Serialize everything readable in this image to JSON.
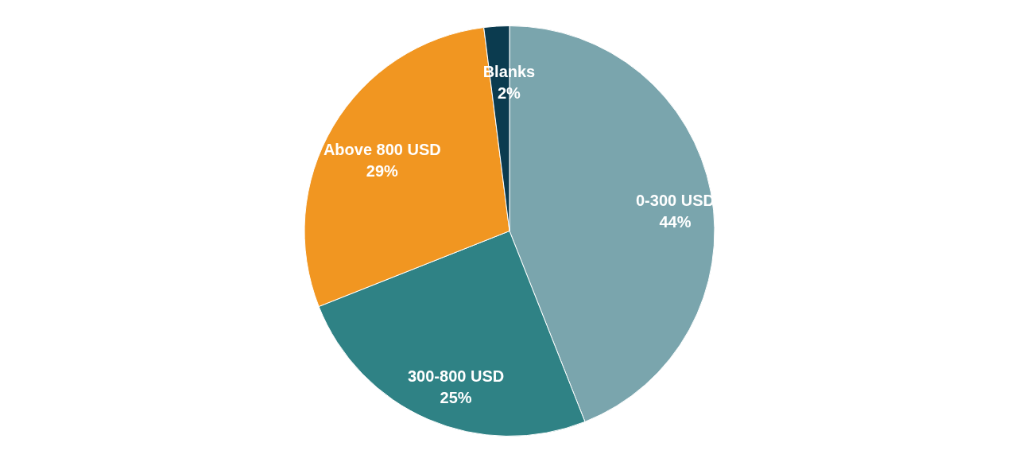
{
  "chart_data": {
    "type": "pie",
    "categories": [
      "0-300 USD",
      "300-800 USD",
      "Above 800 USD",
      "Blanks"
    ],
    "values": [
      44,
      25,
      29,
      2
    ],
    "value_labels": [
      "44%",
      "25%",
      "29%",
      "2%"
    ],
    "colors": [
      "#7aa5ad",
      "#2f8285",
      "#f19621",
      "#0b3b4f"
    ]
  }
}
